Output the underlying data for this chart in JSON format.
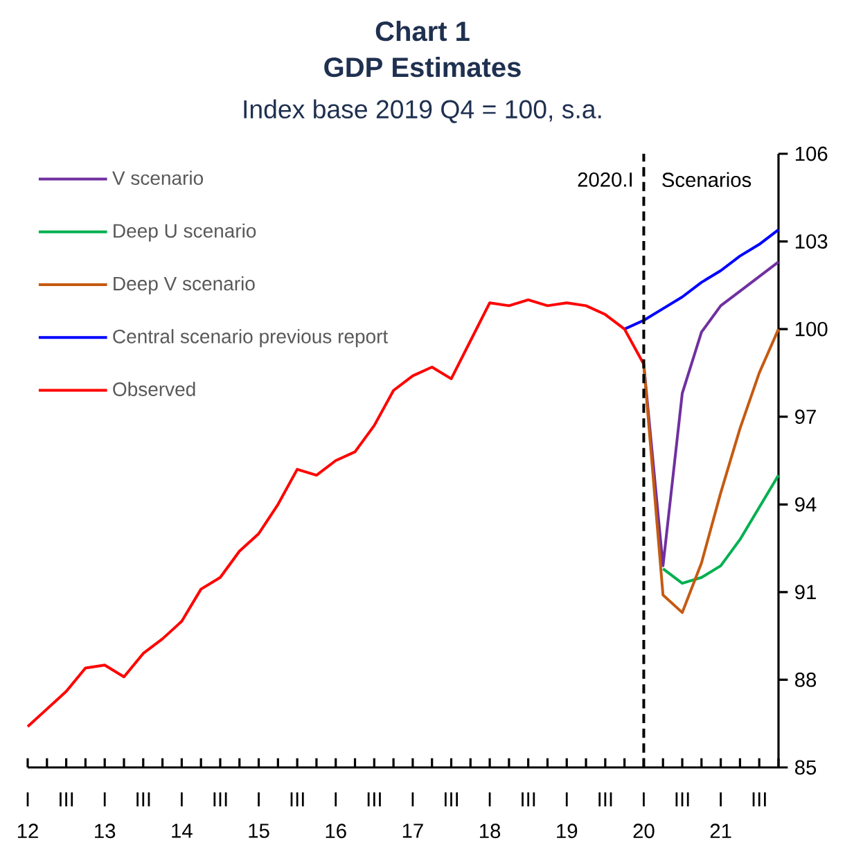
{
  "chart_data": {
    "type": "line",
    "title": "Chart 1",
    "subtitle": "GDP Estimates",
    "ylabel": "Index base 2019 Q4 = 100, s.a.",
    "marker": "none",
    "legend": "top left",
    "line_style": "solid",
    "categories": [
      "I",
      null,
      "III",
      null,
      "I",
      null,
      "III",
      null,
      "I",
      null,
      "III",
      null,
      "I",
      null,
      "III",
      null,
      "I",
      null,
      "III",
      null,
      "I",
      null,
      "III",
      null,
      "I",
      null,
      "III",
      null,
      "I",
      null,
      "III",
      null,
      "I",
      null,
      "III",
      null,
      "I",
      null,
      "III",
      null
    ],
    "series": [
      {
        "name": "V scenario",
        "color": "#7030a0",
        "values": [
          null,
          null,
          null,
          null,
          null,
          null,
          null,
          null,
          null,
          null,
          null,
          null,
          null,
          null,
          null,
          null,
          null,
          null,
          null,
          null,
          null,
          null,
          null,
          null,
          null,
          null,
          null,
          null,
          null,
          null,
          null,
          null,
          98.8,
          91.9,
          97.8,
          99.9,
          100.8,
          101.3,
          101.8,
          102.3
        ]
      },
      {
        "name": "Deep U scenario",
        "color": "#00b050",
        "values": [
          null,
          null,
          null,
          null,
          null,
          null,
          null,
          null,
          null,
          null,
          null,
          null,
          null,
          null,
          null,
          null,
          null,
          null,
          null,
          null,
          null,
          null,
          null,
          null,
          null,
          null,
          null,
          null,
          null,
          null,
          null,
          null,
          null,
          91.8,
          91.3,
          91.5,
          91.9,
          92.8,
          93.9,
          95.0
        ]
      },
      {
        "name": "Deep V scenario",
        "color": "#c55a11",
        "values": [
          null,
          null,
          null,
          null,
          null,
          null,
          null,
          null,
          null,
          null,
          null,
          null,
          null,
          null,
          null,
          null,
          null,
          null,
          null,
          null,
          null,
          null,
          null,
          null,
          null,
          null,
          null,
          null,
          null,
          null,
          null,
          null,
          98.8,
          90.9,
          90.3,
          92.0,
          94.4,
          96.6,
          98.5,
          100.0
        ]
      },
      {
        "name": "Central scenario previous report",
        "color": "#0000ff",
        "values": [
          null,
          null,
          null,
          null,
          null,
          null,
          null,
          null,
          null,
          null,
          null,
          null,
          null,
          null,
          null,
          null,
          null,
          null,
          null,
          null,
          null,
          null,
          null,
          null,
          null,
          null,
          null,
          null,
          null,
          null,
          null,
          100.0,
          100.3,
          100.7,
          101.1,
          101.6,
          102.0,
          102.5,
          102.9,
          103.4
        ]
      },
      {
        "name": "Observed",
        "color": "#ff0000",
        "values": [
          86.4,
          87.0,
          87.6,
          88.4,
          88.5,
          88.1,
          88.9,
          89.4,
          90.0,
          91.1,
          91.5,
          92.4,
          93.0,
          94.0,
          95.2,
          95.0,
          95.5,
          95.8,
          96.7,
          97.9,
          98.4,
          98.7,
          98.3,
          99.6,
          100.9,
          100.8,
          101.0,
          100.8,
          100.9,
          100.8,
          100.5,
          100.0,
          98.8,
          null,
          null,
          null,
          null,
          null,
          null,
          null
        ]
      }
    ],
    "x2lim": [
      12,
      21.75
    ],
    "x2ticks": [
      12,
      13,
      14,
      15,
      16,
      17,
      18,
      19,
      20,
      21
    ],
    "ylim": [
      85,
      106
    ],
    "yticks": [
      85,
      88,
      91,
      94,
      97,
      100,
      103,
      106
    ],
    "ref_lines": [
      {
        "axis": "x2",
        "value": 20,
        "label": "2020.I",
        "color": "#000000",
        "line_style": "dashed"
      }
    ],
    "annotations": [
      "Scenarios"
    ]
  }
}
